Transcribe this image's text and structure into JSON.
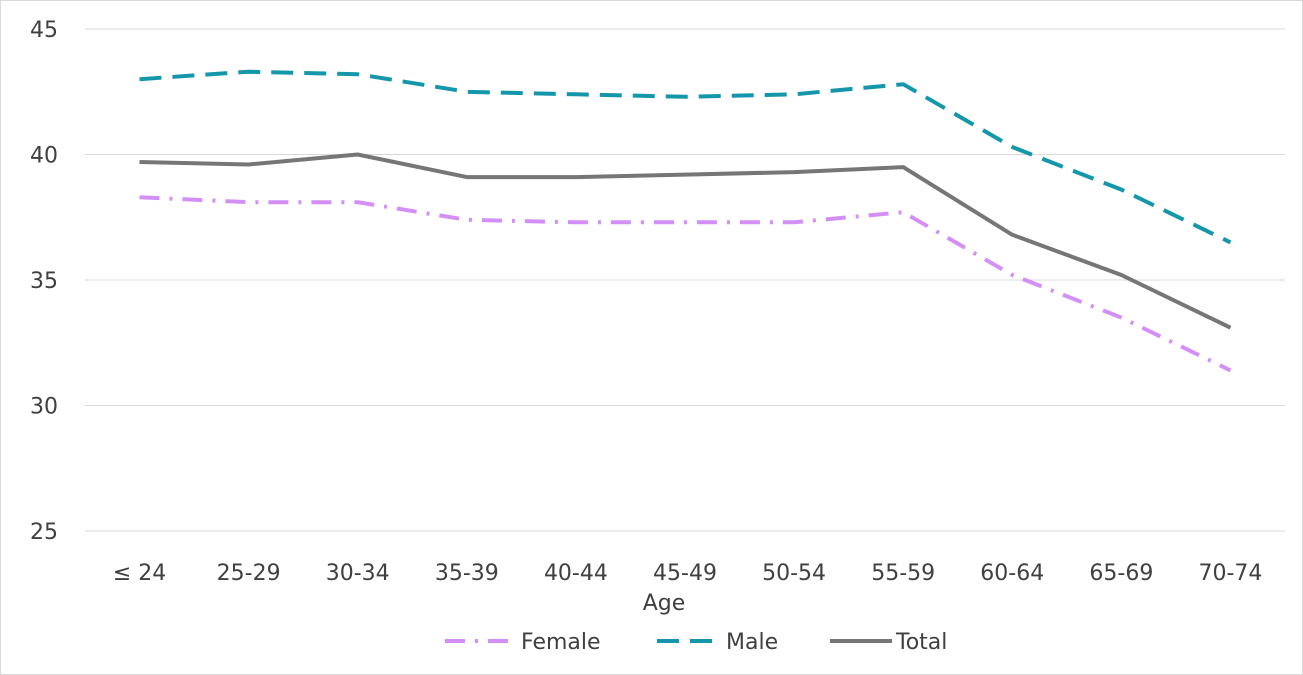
{
  "chart_data": {
    "type": "line",
    "title": "",
    "xlabel": "Age",
    "ylabel": "",
    "categories": [
      "≤ 24",
      "25-29",
      "30-34",
      "35-39",
      "40-44",
      "45-49",
      "50-54",
      "55-59",
      "60-64",
      "65-69",
      "70-74"
    ],
    "ylim": [
      25,
      45
    ],
    "yticks": [
      25,
      30,
      35,
      40,
      45
    ],
    "grid": true,
    "legend_position": "bottom",
    "series": [
      {
        "name": "Female",
        "color": "#d48ff7",
        "style": "dash-dot",
        "values": [
          38.3,
          38.1,
          38.1,
          37.4,
          37.3,
          37.3,
          37.3,
          37.7,
          35.2,
          33.5,
          31.4
        ]
      },
      {
        "name": "Male",
        "color": "#1497aa",
        "style": "dashed",
        "values": [
          43.0,
          43.3,
          43.2,
          42.5,
          42.4,
          42.3,
          42.4,
          42.8,
          40.3,
          38.6,
          36.5
        ]
      },
      {
        "name": "Total",
        "color": "#767676",
        "style": "solid",
        "values": [
          39.7,
          39.6,
          40.0,
          39.1,
          39.1,
          39.2,
          39.3,
          39.5,
          36.8,
          35.2,
          33.1
        ]
      }
    ]
  }
}
